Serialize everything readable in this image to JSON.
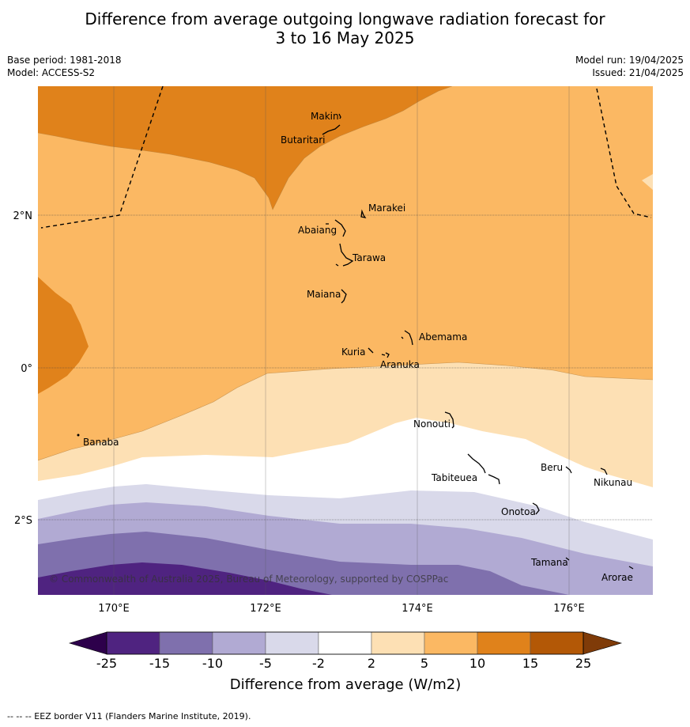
{
  "title_line1": "Difference from average outgoing longwave radiation forecast for",
  "title_line2": "3 to 16 May 2025",
  "base_period": "Base period: 1981-2018",
  "model": "Model: ACCESS-S2",
  "model_run": "Model run: 19/04/2025",
  "issued": "Issued: 21/04/2025",
  "copyright": "© Commonwealth of Australia 2025, Bureau of Meteorology, supported by COSPPac",
  "colorbar_label": "Difference from average (W/m2)",
  "footnote": "--  --  -- EEZ border V11 (Flanders Marine Institute, 2019).",
  "colors": {
    "c_m25": "#4f2380",
    "c_m15": "#7f70ad",
    "c_m10": "#b1aad3",
    "c_m5": "#d9d9ea",
    "c_neutral": "#ffffff",
    "c_p2": "#fde0b4",
    "c_p5": "#fbb863",
    "c_p10": "#e0821b",
    "c_p15": "#b35806",
    "c_over": "#7f3b08",
    "c_under": "#2d004b"
  },
  "colorbar": {
    "ticks": [
      "-25",
      "-15",
      "-10",
      "-5",
      "-2",
      "2",
      "5",
      "10",
      "15",
      "25"
    ],
    "colors": [
      "#4f2380",
      "#7f70ad",
      "#b1aad3",
      "#d9d9ea",
      "#ffffff",
      "#fde0b4",
      "#fbb863",
      "#e0821b",
      "#b35806"
    ]
  },
  "lon_ticks": [
    "170°E",
    "172°E",
    "174°E",
    "176°E"
  ],
  "lat_ticks": [
    "2°N",
    "0°",
    "2°S"
  ],
  "places": {
    "makin": "Makin",
    "butaritari": "Butaritari",
    "marakei": "Marakei",
    "abaiang": "Abaiang",
    "tarawa": "Tarawa",
    "maiana": "Maiana",
    "abemama": "Abemama",
    "kuria": "Kuria",
    "aranuka": "Aranuka",
    "banaba": "Banaba",
    "nonouti": "Nonouti",
    "beru": "Beru",
    "nikunau": "Nikunau",
    "tabiteuea": "Tabiteuea",
    "onotoa": "Onotoa",
    "tamana": "Tamana",
    "arorae": "Arorae"
  }
}
